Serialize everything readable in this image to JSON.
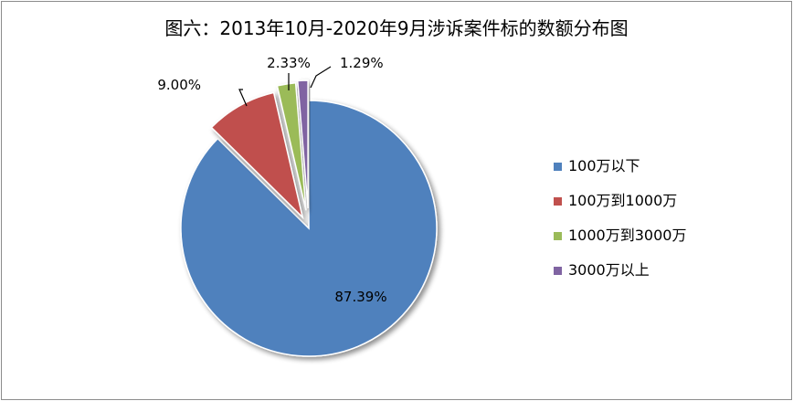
{
  "chart_data": {
    "type": "pie",
    "title": "图六：2013年10月-2020年9月涉诉案件标的数额分布图",
    "categories": [
      "100万以下",
      "100万到1000万",
      "1000万到3000万",
      "3000万以上"
    ],
    "values": [
      87.39,
      9.0,
      2.33,
      1.29
    ],
    "value_labels": [
      "87.39%",
      "9.00%",
      "2.33%",
      "1.29%"
    ],
    "colors": [
      "#4f81bd",
      "#c0504d",
      "#9bbb59",
      "#8064a2"
    ],
    "start_angle_deg": 0,
    "direction": "clockwise",
    "exploded": true,
    "legend": {
      "position": "right"
    }
  }
}
